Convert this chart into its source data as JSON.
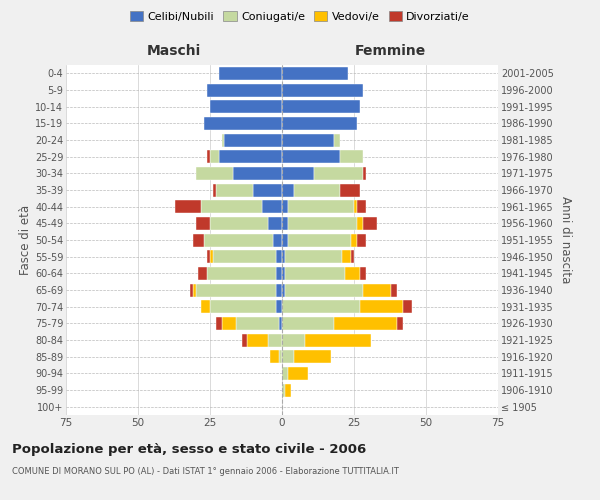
{
  "age_groups": [
    "100+",
    "95-99",
    "90-94",
    "85-89",
    "80-84",
    "75-79",
    "70-74",
    "65-69",
    "60-64",
    "55-59",
    "50-54",
    "45-49",
    "40-44",
    "35-39",
    "30-34",
    "25-29",
    "20-24",
    "15-19",
    "10-14",
    "5-9",
    "0-4"
  ],
  "birth_years": [
    "≤ 1905",
    "1906-1910",
    "1911-1915",
    "1916-1920",
    "1921-1925",
    "1926-1930",
    "1931-1935",
    "1936-1940",
    "1941-1945",
    "1946-1950",
    "1951-1955",
    "1956-1960",
    "1961-1965",
    "1966-1970",
    "1971-1975",
    "1976-1980",
    "1981-1985",
    "1986-1990",
    "1991-1995",
    "1996-2000",
    "2001-2005"
  ],
  "male_celibi": [
    0,
    0,
    0,
    0,
    0,
    1,
    2,
    2,
    2,
    2,
    3,
    5,
    7,
    10,
    17,
    22,
    20,
    27,
    25,
    26,
    22
  ],
  "male_coniugati": [
    0,
    0,
    0,
    1,
    5,
    15,
    23,
    28,
    24,
    22,
    24,
    20,
    21,
    13,
    13,
    3,
    1,
    0,
    0,
    0,
    0
  ],
  "male_vedovi": [
    0,
    0,
    0,
    3,
    7,
    5,
    3,
    1,
    0,
    1,
    0,
    0,
    0,
    0,
    0,
    0,
    0,
    0,
    0,
    0,
    0
  ],
  "male_divorziati": [
    0,
    0,
    0,
    0,
    2,
    2,
    0,
    1,
    3,
    1,
    4,
    5,
    9,
    1,
    0,
    1,
    0,
    0,
    0,
    0,
    0
  ],
  "female_nubili": [
    0,
    0,
    0,
    0,
    0,
    0,
    0,
    1,
    1,
    1,
    2,
    2,
    2,
    4,
    11,
    20,
    18,
    26,
    27,
    28,
    23
  ],
  "female_coniugate": [
    0,
    1,
    2,
    4,
    8,
    18,
    27,
    27,
    21,
    20,
    22,
    24,
    23,
    16,
    17,
    8,
    2,
    0,
    0,
    0,
    0
  ],
  "female_vedove": [
    0,
    2,
    7,
    13,
    23,
    22,
    15,
    10,
    5,
    3,
    2,
    2,
    1,
    0,
    0,
    0,
    0,
    0,
    0,
    0,
    0
  ],
  "female_divorziate": [
    0,
    0,
    0,
    0,
    0,
    2,
    3,
    2,
    2,
    1,
    3,
    5,
    3,
    7,
    1,
    0,
    0,
    0,
    0,
    0,
    0
  ],
  "color_celibi": "#4472c4",
  "color_coniugati": "#c5d9a0",
  "color_vedovi": "#ffc000",
  "color_divorziati": "#c0392b",
  "xlim": 75,
  "title": "Popolazione per età, sesso e stato civile - 2006",
  "subtitle": "COMUNE DI MORANO SUL PO (AL) - Dati ISTAT 1° gennaio 2006 - Elaborazione TUTTITALIA.IT",
  "ylabel_left": "Fasce di età",
  "ylabel_right": "Anni di nascita",
  "label_male": "Maschi",
  "label_female": "Femmine",
  "legend_labels": [
    "Celibi/Nubili",
    "Coniugati/e",
    "Vedovi/e",
    "Divorziati/e"
  ],
  "bg_color": "#f0f0f0",
  "plot_bg": "#ffffff"
}
